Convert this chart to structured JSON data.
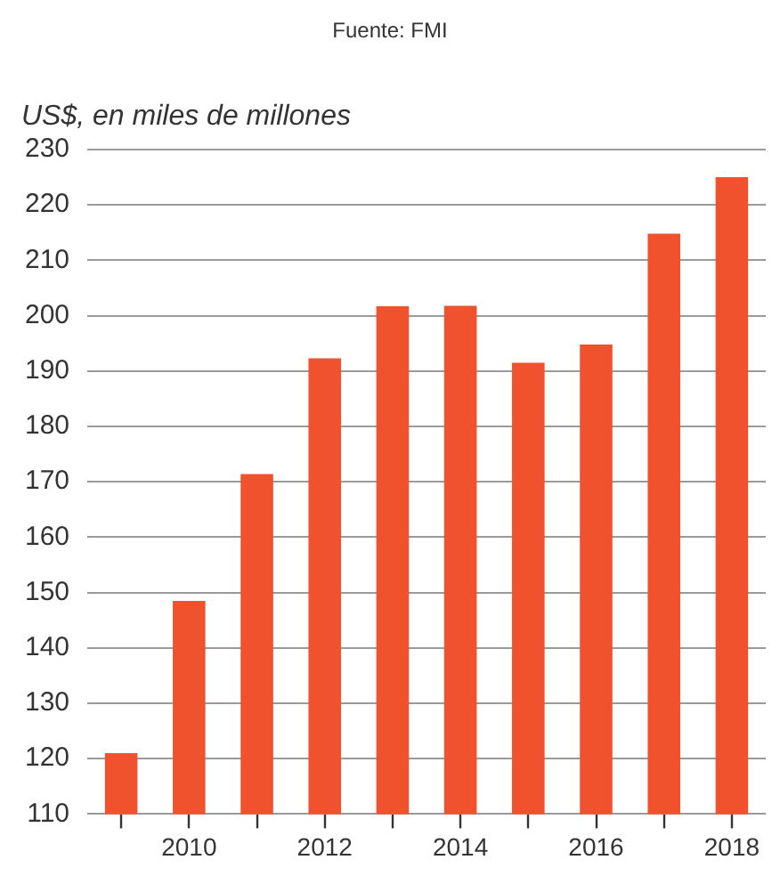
{
  "chart_data": {
    "type": "bar",
    "annotations": [
      "Fuente: FMI"
    ],
    "ylabel": "US$, en miles de millones",
    "categories": [
      null,
      "2010",
      null,
      "2012",
      null,
      "2014",
      null,
      "2016",
      null,
      "2018"
    ],
    "values": [
      121,
      148.5,
      171.4,
      192.3,
      201.7,
      201.8,
      191.5,
      194.8,
      214.8,
      225
    ],
    "color": "#f0522d",
    "ylim": [
      110,
      230
    ],
    "yticks": [
      110,
      120,
      130,
      140,
      150,
      160,
      170,
      180,
      190,
      200,
      210,
      220,
      230
    ],
    "grid": "y",
    "legend": false
  }
}
